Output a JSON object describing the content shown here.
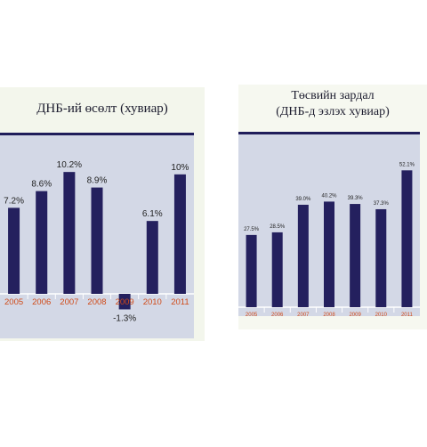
{
  "chart_data": [
    {
      "type": "bar",
      "title": "ДНБ-ий өсөлт (хувиар)",
      "categories": [
        "2005",
        "2006",
        "2007",
        "2008",
        "2009",
        "2010",
        "2011"
      ],
      "values": [
        7.2,
        8.6,
        10.2,
        8.9,
        -1.3,
        6.1,
        10
      ],
      "value_labels": [
        "7.2%",
        "8.6%",
        "10.2%",
        "8.9%",
        "-1.3%",
        "6.1%",
        "10%"
      ],
      "ylim": [
        -2,
        12
      ],
      "grid": false,
      "colors": {
        "bar": "#24205e",
        "plot_bg": "#d3d8e6",
        "tick_label": "#d04a18",
        "title_rule": "#1f1d5a"
      }
    },
    {
      "type": "bar",
      "title_lines": [
        "Төсвийн зардал",
        "(ДНБ-д эзлэх хувиар)"
      ],
      "categories": [
        "2005",
        "2006",
        "2007",
        "2008",
        "2009",
        "2010",
        "2011"
      ],
      "values": [
        27.5,
        28.5,
        39.0,
        40.2,
        39.3,
        37.3,
        52.1
      ],
      "value_labels": [
        "27.5%",
        "28.5%",
        "39.0%",
        "40.2%",
        "39.3%",
        "37.3%",
        "52.1%"
      ],
      "ylim": [
        0,
        60
      ],
      "grid": false,
      "colors": {
        "bar": "#24205e",
        "plot_bg": "#d3d8e6",
        "tick_label": "#d04a18",
        "title_rule": "#1f1d5a"
      }
    }
  ]
}
